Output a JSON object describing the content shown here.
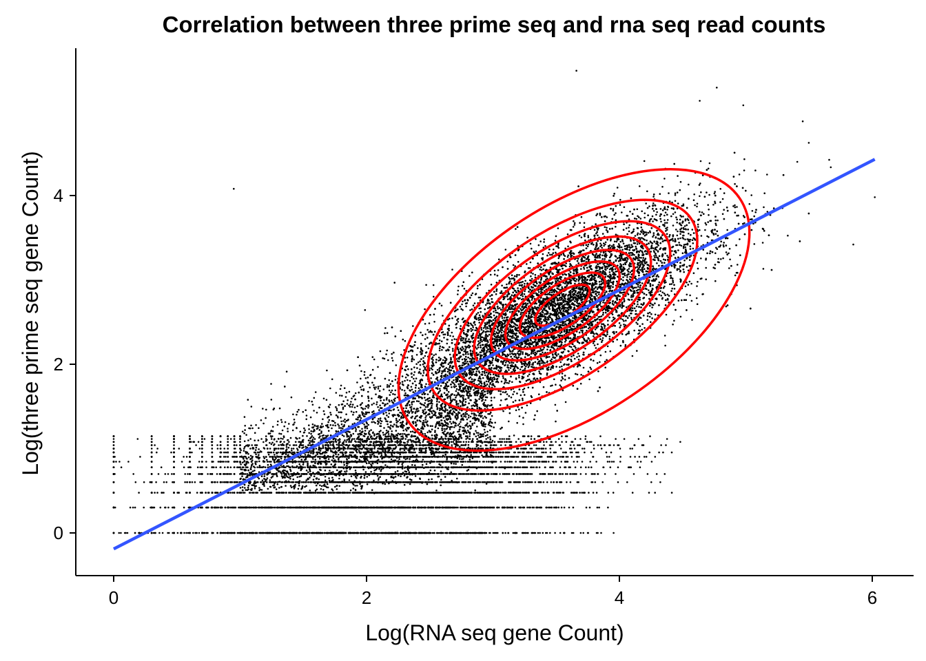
{
  "chart_data": {
    "type": "scatter",
    "title": "Correlation between three prime seq and rna seq read counts",
    "xlabel": "Log(RNA seq gene Count)",
    "ylabel": "Log(three prime seq gene Count)",
    "xlim": [
      -0.3,
      6.3
    ],
    "ylim": [
      -0.5,
      5.75
    ],
    "x_ticks": [
      0,
      2,
      4,
      6
    ],
    "y_ticks": [
      0,
      2,
      4
    ],
    "grid": false,
    "legend": "none",
    "point_color": "#000000",
    "series": [
      {
        "kind": "points",
        "color": "#000000",
        "count_estimate": 15000,
        "sample_points": [
          {
            "x": 0.0,
            "y": 0.0
          },
          {
            "x": 0.3,
            "y": 0.0
          },
          {
            "x": 0.48,
            "y": 0.3
          },
          {
            "x": 1.0,
            "y": 0.0
          },
          {
            "x": 1.5,
            "y": 0.3
          },
          {
            "x": 2.0,
            "y": 1.5
          },
          {
            "x": 2.5,
            "y": 1.8
          },
          {
            "x": 3.0,
            "y": 2.1
          },
          {
            "x": 3.5,
            "y": 2.6
          },
          {
            "x": 3.8,
            "y": 2.8
          },
          {
            "x": 4.2,
            "y": 3.2
          },
          {
            "x": 4.5,
            "y": 3.5
          },
          {
            "x": 3.66,
            "y": 5.48
          },
          {
            "x": 4.77,
            "y": 5.28
          },
          {
            "x": 4.98,
            "y": 5.07
          },
          {
            "x": 5.45,
            "y": 4.88
          },
          {
            "x": 0.95,
            "y": 4.08
          },
          {
            "x": 5.85,
            "y": 3.42
          },
          {
            "x": 6.02,
            "y": 3.98
          },
          {
            "x": 3.75,
            "y": 0.0
          }
        ]
      },
      {
        "kind": "regression-line",
        "color": "#3355FF",
        "x": [
          0.0,
          6.02
        ],
        "y": [
          -0.19,
          4.43
        ]
      },
      {
        "kind": "density-contours",
        "color": "#FF0000",
        "center": {
          "x": 3.55,
          "y": 2.7
        },
        "levels": 8
      }
    ]
  }
}
